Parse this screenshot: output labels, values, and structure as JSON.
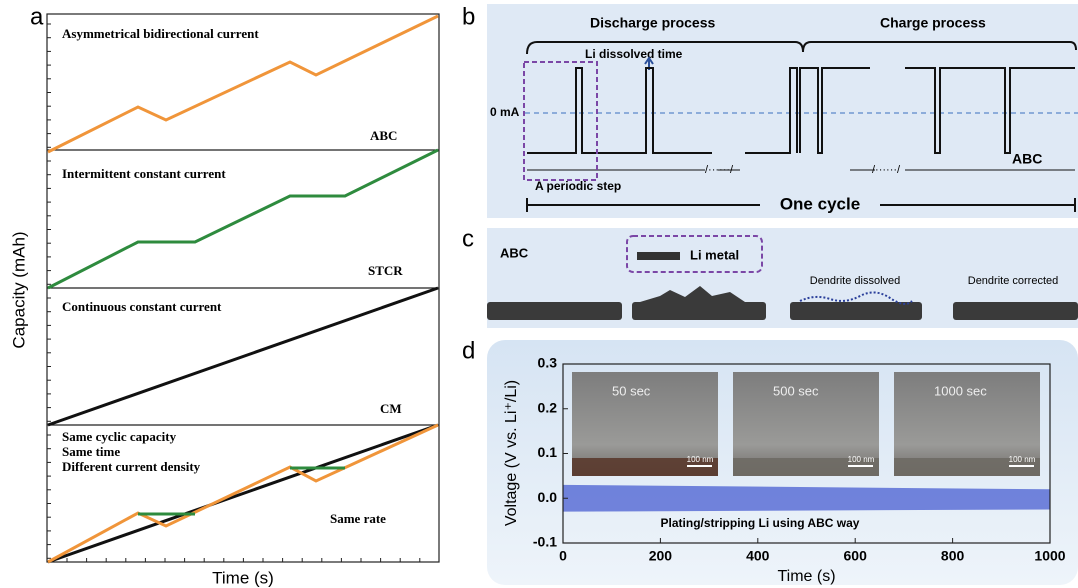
{
  "panel_a": {
    "label": "a",
    "y_label": "Capacity (mAh)",
    "x_label": "Time (s)",
    "plots": [
      {
        "title": "Asymmetrical bidirectional current",
        "tag": "ABC"
      },
      {
        "title": "Intermittent constant current",
        "tag": "STCR"
      },
      {
        "title": "Continuous constant current",
        "tag": "CM"
      },
      {
        "lines": [
          "Same cyclic capacity",
          "Same time",
          "Different current density"
        ],
        "tag": "Same rate"
      }
    ]
  },
  "panel_b": {
    "label": "b",
    "discharge": "Discharge process",
    "charge": "Charge process",
    "dissolved": "Li dissolved time",
    "zero": "0 mA",
    "tag": "ABC",
    "step": "A periodic step",
    "cycle": "One cycle"
  },
  "panel_c": {
    "label": "c",
    "tag": "ABC",
    "legend": "Li   metal",
    "dissolved": "Dendrite dissolved",
    "corrected": "Dendrite corrected"
  },
  "chart_data": {
    "type": "band",
    "label": "d",
    "x_label": "Time (s)",
    "y_label": "Voltage (V vs. Li⁺/Li)",
    "annotation": "Plating/stripping Li using ABC    way",
    "insets": [
      {
        "time": "50 sec",
        "scale": "100 nm"
      },
      {
        "time": "500 sec",
        "scale": "100 nm"
      },
      {
        "time": "1000 sec",
        "scale": "100 nm"
      }
    ],
    "x": [
      0,
      1000
    ],
    "upper": [
      0.03,
      0.02
    ],
    "lower": [
      -0.03,
      -0.025
    ],
    "color": "#5b6fd6",
    "xlim": [
      0,
      1000
    ],
    "xticks": [
      0,
      200,
      400,
      600,
      800,
      1000
    ],
    "ylim": [
      -0.1,
      0.3
    ],
    "yticks": [
      -0.1,
      {
        "value": 0,
        "label": "0.0"
      },
      0.1,
      0.2,
      0.3
    ]
  }
}
